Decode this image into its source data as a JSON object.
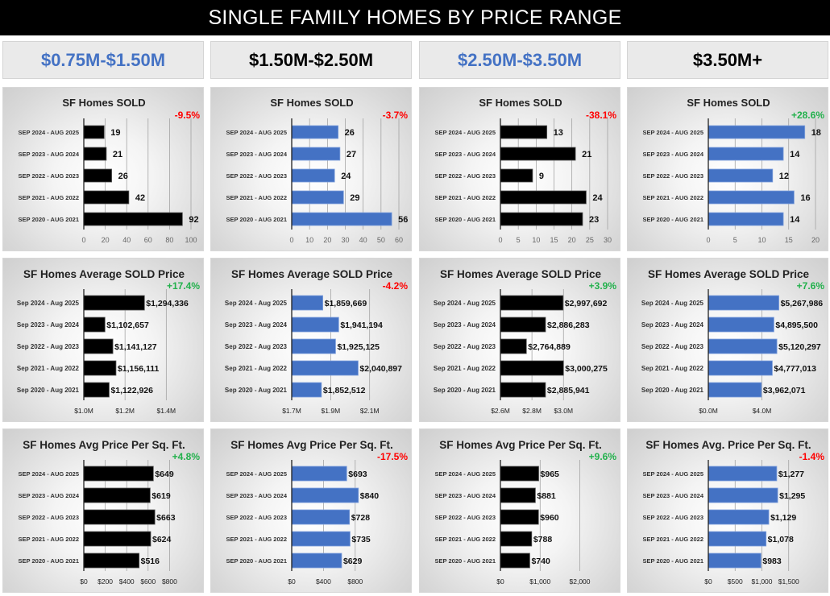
{
  "title": "SINGLE FAMILY HOMES BY PRICE RANGE",
  "colors": {
    "blue": "#4472C4",
    "black": "#000000",
    "up": "#22b14c",
    "down": "#ff0000"
  },
  "ranges": [
    {
      "label": "$0.75M-$1.50M",
      "color": "#4472C4"
    },
    {
      "label": "$1.50M-$2.50M",
      "color": "#000000"
    },
    {
      "label": "$2.50M-$3.50M",
      "color": "#4472C4"
    },
    {
      "label": "$3.50M+",
      "color": "#000000"
    }
  ],
  "chart_data": [
    {
      "type": "bar",
      "orientation": "horizontal",
      "title": "SF Homes SOLD",
      "change": "-9.5%",
      "change_dir": "down",
      "bar_color": "#000000",
      "categories": [
        "SEP 2024 - AUG 2025",
        "SEP 2023 - AUG 2024",
        "SEP 2022 - AUG 2023",
        "SEP 2021 - AUG 2022",
        "SEP 2020 - AUG 2021"
      ],
      "values": [
        19,
        21,
        26,
        42,
        92
      ],
      "labels": [
        "19",
        "21",
        "26",
        "42",
        "92"
      ],
      "xlim": [
        0,
        100
      ],
      "ticks": [
        0,
        20,
        40,
        60,
        80,
        100
      ],
      "tick_labels": [
        "0",
        "20",
        "40",
        "60",
        "80",
        "100"
      ]
    },
    {
      "type": "bar",
      "orientation": "horizontal",
      "title": "SF Homes SOLD",
      "change": "-3.7%",
      "change_dir": "down",
      "bar_color": "#4472C4",
      "categories": [
        "SEP 2024 - AUG 2025",
        "SEP 2023 - AUG 2024",
        "SEP 2022 - AUG 2023",
        "SEP 2021 - AUG 2022",
        "SEP 2020 - AUG 2021"
      ],
      "values": [
        26,
        27,
        24,
        29,
        56
      ],
      "labels": [
        "26",
        "27",
        "24",
        "29",
        "56"
      ],
      "xlim": [
        0,
        60
      ],
      "ticks": [
        0,
        10,
        20,
        30,
        40,
        50,
        60
      ],
      "tick_labels": [
        "0",
        "10",
        "20",
        "30",
        "40",
        "50",
        "60"
      ]
    },
    {
      "type": "bar",
      "orientation": "horizontal",
      "title": "SF Homes SOLD",
      "change": "-38.1%",
      "change_dir": "down",
      "bar_color": "#000000",
      "categories": [
        "SEP 2024 - AUG 2025",
        "SEP 2023 - AUG 2024",
        "SEP 2022 - AUG 2023",
        "SEP 2021 - AUG 2022",
        "SEP 2020 - AUG 2021"
      ],
      "values": [
        13,
        21,
        9,
        24,
        23
      ],
      "labels": [
        "13",
        "21",
        "9",
        "24",
        "23"
      ],
      "xlim": [
        0,
        30
      ],
      "ticks": [
        0,
        5,
        10,
        15,
        20,
        25,
        30
      ],
      "tick_labels": [
        "0",
        "5",
        "10",
        "15",
        "20",
        "25",
        "30"
      ]
    },
    {
      "type": "bar",
      "orientation": "horizontal",
      "title": "SF Homes SOLD",
      "change": "+28.6%",
      "change_dir": "up",
      "bar_color": "#4472C4",
      "categories": [
        "SEP 2024 - AUG 2025",
        "SEP 2023 - AUG 2024",
        "SEP 2022 - AUG 2023",
        "SEP 2021 - AUG 2022",
        "SEP 2020 - AUG 2021"
      ],
      "values": [
        18,
        14,
        12,
        16,
        14
      ],
      "labels": [
        "18",
        "14",
        "12",
        "16",
        "14"
      ],
      "xlim": [
        0,
        20
      ],
      "ticks": [
        0,
        5,
        10,
        15,
        20
      ],
      "tick_labels": [
        "0",
        "5",
        "10",
        "15",
        "20"
      ]
    },
    {
      "type": "bar",
      "orientation": "horizontal",
      "title": "SF Homes Average SOLD Price",
      "change": "+17.4%",
      "change_dir": "up",
      "bar_color": "#000000",
      "categories": [
        "Sep 2024 - Aug 2025",
        "Sep 2023 - Aug 2024",
        "Sep 2022 - Aug 2023",
        "Sep 2021 - Aug 2022",
        "Sep 2020 - Aug 2021"
      ],
      "values": [
        1294336,
        1102657,
        1141127,
        1156111,
        1122926
      ],
      "labels": [
        "$1,294,336",
        "$1,102,657",
        "$1,141,127",
        "$1,156,111",
        "$1,122,926"
      ],
      "xlim": [
        1000000,
        1520000
      ],
      "ticks": [
        1000000,
        1200000,
        1400000
      ],
      "tick_labels": [
        "$1.0M",
        "$1.2M",
        "$1.4M"
      ]
    },
    {
      "type": "bar",
      "orientation": "horizontal",
      "title": "SF Homes Average SOLD Price",
      "change": "-4.2%",
      "change_dir": "down",
      "bar_color": "#4472C4",
      "categories": [
        "Sep 2024 - Aug 2025",
        "Sep 2023 - Aug 2024",
        "Sep 2022 - Aug 2023",
        "Sep 2021 - Aug 2022",
        "Sep 2020 - Aug 2021"
      ],
      "values": [
        1859669,
        1941194,
        1925125,
        2040897,
        1852512
      ],
      "labels": [
        "$1,859,669",
        "$1,941,194",
        "$1,925,125",
        "$2,040,897",
        "$1,852,512"
      ],
      "xlim": [
        1700000,
        2250000
      ],
      "ticks": [
        1700000,
        1900000,
        2100000
      ],
      "tick_labels": [
        "$1.7M",
        "$1.9M",
        "$2.1M"
      ]
    },
    {
      "type": "bar",
      "orientation": "horizontal",
      "title": "SF Homes Average SOLD Price",
      "change": "+3.9%",
      "change_dir": "up",
      "bar_color": "#000000",
      "categories": [
        "Sep 2024 - Aug 2025",
        "Sep 2023 - Aug 2024",
        "Sep 2022 - Aug 2023",
        "Sep 2021 - Aug 2022",
        "Sep 2020 - Aug 2021"
      ],
      "values": [
        2997692,
        2886283,
        2764889,
        3000275,
        2885941
      ],
      "labels": [
        "$2,997,692",
        "$2,886,283",
        "$2,764,889",
        "$3,000,275",
        "$2,885,941"
      ],
      "xlim": [
        2600000,
        3280000
      ],
      "ticks": [
        2600000,
        2800000,
        3000000
      ],
      "tick_labels": [
        "$2.6M",
        "$2.8M",
        "$3.0M"
      ]
    },
    {
      "type": "bar",
      "orientation": "horizontal",
      "title": "SF Homes Average SOLD Price",
      "change": "+7.6%",
      "change_dir": "up",
      "bar_color": "#4472C4",
      "categories": [
        "Sep 2024 - Aug 2025",
        "Sep 2023 - Aug 2024",
        "Sep 2022 - Aug 2023",
        "Sep 2021 - Aug 2022",
        "Sep 2020 - Aug 2021"
      ],
      "values": [
        5267986,
        4895500,
        5120297,
        4777013,
        3962071
      ],
      "labels": [
        "$5,267,986",
        "$4,895,500",
        "$5,120,297",
        "$4,777,013",
        "$3,962,071"
      ],
      "xlim": [
        0,
        8000000
      ],
      "ticks": [
        0,
        4000000
      ],
      "tick_labels": [
        "$0.0M",
        "$4.0M"
      ]
    },
    {
      "type": "bar",
      "orientation": "horizontal",
      "title": "SF Homes Avg Price Per Sq. Ft.",
      "change": "+4.8%",
      "change_dir": "up",
      "bar_color": "#000000",
      "categories": [
        "SEP 2024 - AUG 2025",
        "SEP 2023 - AUG 2024",
        "SEP 2022 - AUG 2023",
        "SEP 2021 - AUG 2022",
        "SEP 2020 - AUG 2021"
      ],
      "values": [
        649,
        619,
        663,
        624,
        516
      ],
      "labels": [
        "$649",
        "$619",
        "$663",
        "$624",
        "$516"
      ],
      "xlim": [
        0,
        1000
      ],
      "ticks": [
        0,
        200,
        400,
        600,
        800
      ],
      "tick_labels": [
        "$0",
        "$200",
        "$400",
        "$600",
        "$800"
      ]
    },
    {
      "type": "bar",
      "orientation": "horizontal",
      "title": "SF Homes Avg Price Per Sq. Ft.",
      "change": "-17.5%",
      "change_dir": "down",
      "bar_color": "#4472C4",
      "categories": [
        "SEP 2024 - AUG 2025",
        "SEP 2023 - AUG 2024",
        "SEP 2022 - AUG 2023",
        "SEP 2021 - AUG 2022",
        "SEP 2020 - AUG 2021"
      ],
      "values": [
        693,
        840,
        728,
        735,
        629
      ],
      "labels": [
        "$693",
        "$840",
        "$728",
        "$735",
        "$629"
      ],
      "xlim": [
        0,
        1350
      ],
      "ticks": [
        0,
        400,
        800
      ],
      "tick_labels": [
        "$0",
        "$400",
        "$800"
      ]
    },
    {
      "type": "bar",
      "orientation": "horizontal",
      "title": "SF Homes Avg Price Per Sq. Ft.",
      "change": "+9.6%",
      "change_dir": "up",
      "bar_color": "#000000",
      "categories": [
        "SEP 2024 - AUG 2025",
        "SEP 2023 - AUG 2024",
        "SEP 2022 - AUG 2023",
        "SEP 2021 - AUG 2022",
        "SEP 2020 - AUG 2021"
      ],
      "values": [
        965,
        881,
        960,
        788,
        740
      ],
      "labels": [
        "$965",
        "$881",
        "$960",
        "$788",
        "$740"
      ],
      "xlim": [
        0,
        2700
      ],
      "ticks": [
        0,
        1000,
        2000
      ],
      "tick_labels": [
        "$0",
        "$1,000",
        "$2,000"
      ]
    },
    {
      "type": "bar",
      "orientation": "horizontal",
      "title": "SF Homes Avg. Price Per Sq. Ft.",
      "change": "-1.4%",
      "change_dir": "down",
      "bar_color": "#4472C4",
      "categories": [
        "SEP 2024 - AUG 2025",
        "SEP 2023 - AUG 2024",
        "SEP 2022 - AUG 2023",
        "SEP 2021 - AUG 2022",
        "SEP 2020 - AUG 2021"
      ],
      "values": [
        1277,
        1295,
        1129,
        1078,
        983
      ],
      "labels": [
        "$1,277",
        "$1,295",
        "$1,129",
        "$1,078",
        "$983"
      ],
      "xlim": [
        0,
        2000
      ],
      "ticks": [
        0,
        500,
        1000,
        1500
      ],
      "tick_labels": [
        "$0",
        "$500",
        "$1,000",
        "$1,500"
      ]
    }
  ]
}
